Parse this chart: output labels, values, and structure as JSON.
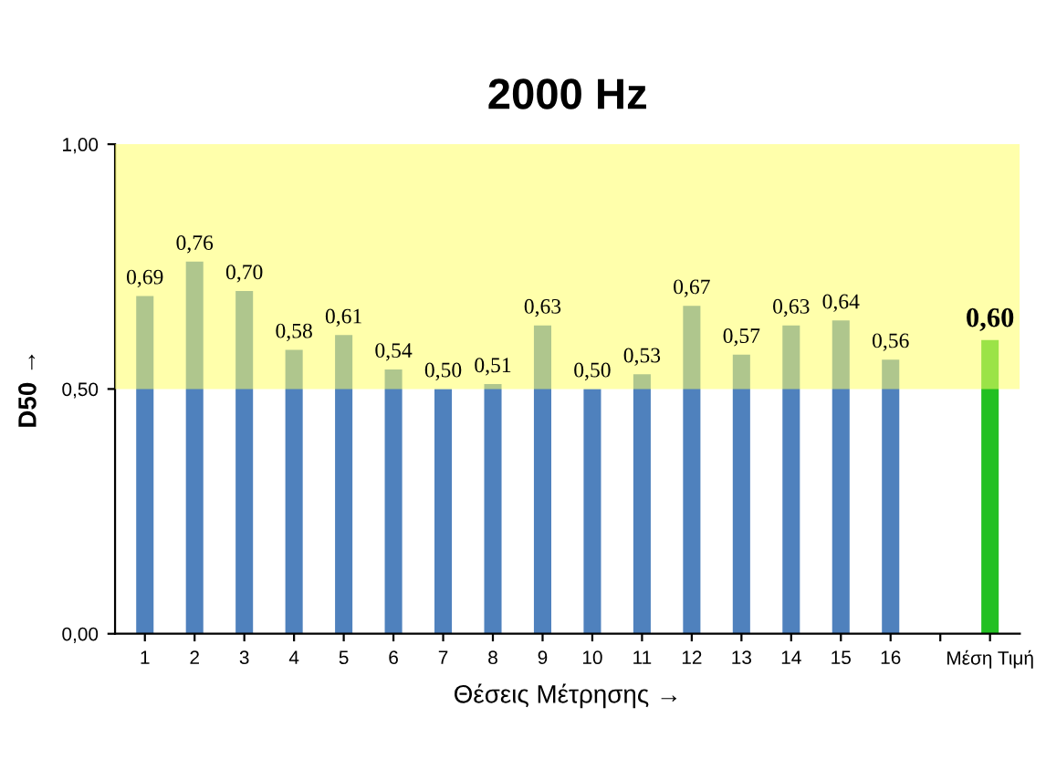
{
  "chart_data": {
    "type": "bar",
    "title": "2000 Hz",
    "xlabel": "Θέσεις Μέτρησης →",
    "ylabel": "D50 →",
    "categories": [
      "1",
      "2",
      "3",
      "4",
      "5",
      "6",
      "7",
      "8",
      "9",
      "10",
      "11",
      "12",
      "13",
      "14",
      "15",
      "16",
      null,
      "Μέση Τιμή"
    ],
    "values": [
      0.69,
      0.76,
      0.7,
      0.58,
      0.61,
      0.54,
      0.5,
      0.51,
      0.63,
      0.5,
      0.53,
      0.67,
      0.57,
      0.63,
      0.64,
      0.56,
      null,
      0.6
    ],
    "colors": [
      "#4f81bd",
      "#4f81bd",
      "#4f81bd",
      "#4f81bd",
      "#4f81bd",
      "#4f81bd",
      "#4f81bd",
      "#4f81bd",
      "#4f81bd",
      "#4f81bd",
      "#4f81bd",
      "#4f81bd",
      "#4f81bd",
      "#4f81bd",
      "#4f81bd",
      "#4f81bd",
      null,
      "#22c022"
    ],
    "value_labels": [
      "0,69",
      "0,76",
      "0,70",
      "0,58",
      "0,61",
      "0,54",
      "0,50",
      "0,51",
      "0,63",
      "0,50",
      "0,53",
      "0,67",
      "0,57",
      "0,63",
      "0,64",
      "0,56",
      null,
      "0,60"
    ],
    "ylim": [
      0,
      1
    ],
    "yticks": [
      {
        "value": 0,
        "label": "0,00"
      },
      {
        "value": 0.5,
        "label": "0,50"
      },
      {
        "value": 1,
        "label": "1,00"
      }
    ],
    "bands": [
      {
        "axis": "y",
        "from": 0.5,
        "to": 1.0,
        "color": "#ffff66"
      }
    ],
    "grid": false,
    "legend": false
  }
}
